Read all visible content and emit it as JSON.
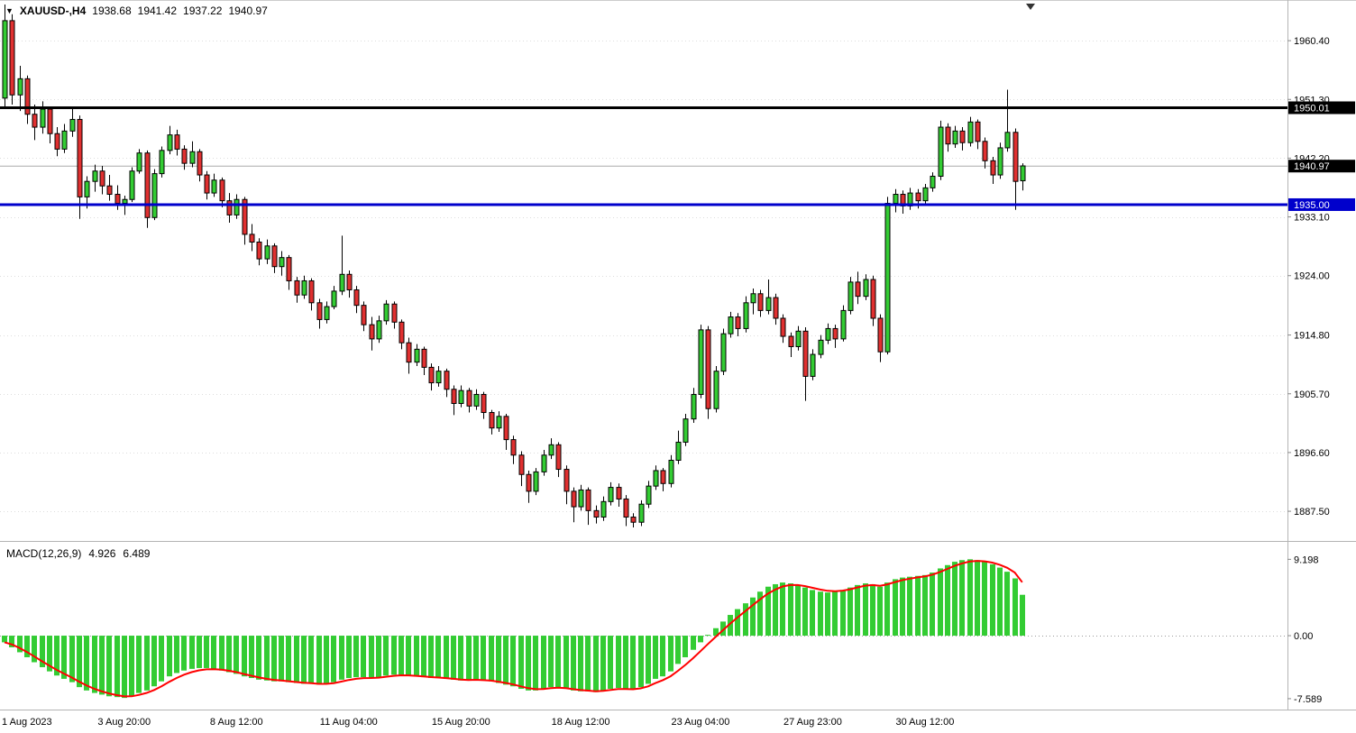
{
  "header": {
    "symbol_period": "XAUUSD-,H4",
    "open": "1938.68",
    "high": "1941.42",
    "low": "1937.22",
    "close": "1940.97"
  },
  "icons": {
    "symbol_dropdown": "▼",
    "chart_shift_marker": "▼"
  },
  "macd_panel": {
    "label": "MACD(12,26,9)",
    "main_value": "4.926",
    "signal_value": "6.489"
  },
  "colors": {
    "background": "#ffffff",
    "up_candle": "#33cc33",
    "down_candle": "#e03030",
    "outline": "#000000",
    "grid": "#dddddd",
    "axis_line": "#b4b4b4",
    "axis_text": "#000000",
    "macd_histogram": "#33cc33",
    "macd_signal": "#ff0000",
    "level_black": "#000000",
    "level_blue": "#0000cc",
    "bid_line": "#aaaaaa",
    "label_text": "#ffffff"
  },
  "chart_data": [
    {
      "type": "candlestick",
      "title": "XAUUSD-,H4",
      "y_axis": {
        "range": [
          1882.9,
          1966.7
        ],
        "ticks": [
          "1960.40",
          "1951.30",
          "1942.20",
          "1933.10",
          "1924.00",
          "1914.80",
          "1905.70",
          "1896.60",
          "1887.50"
        ]
      },
      "x_axis": {
        "ticks": [
          {
            "label": "1 Aug 2023",
            "i": 0
          },
          {
            "label": "3 Aug 20:00",
            "i": 16
          },
          {
            "label": "8 Aug 12:00",
            "i": 31
          },
          {
            "label": "11 Aug 04:00",
            "i": 46
          },
          {
            "label": "15 Aug 20:00",
            "i": 61
          },
          {
            "label": "18 Aug 12:00",
            "i": 77
          },
          {
            "label": "23 Aug 04:00",
            "i": 93
          },
          {
            "label": "27 Aug 23:00",
            "i": 108
          },
          {
            "label": "30 Aug 12:00",
            "i": 123
          }
        ]
      },
      "levels": [
        {
          "value": 1950.01,
          "label": "1950.01",
          "color": "#000000",
          "label_bg": "#000000",
          "width": 3
        },
        {
          "value": 1940.97,
          "label": "1940.97",
          "color": "#aaaaaa",
          "label_bg": "#000000",
          "width": 1
        },
        {
          "value": 1935.0,
          "label": "1935.00",
          "color": "#0000cc",
          "label_bg": "#0000cc",
          "width": 3
        }
      ],
      "candles": [
        [
          1951.5,
          1966.0,
          1950.0,
          1963.5
        ],
        [
          1963.5,
          1964.5,
          1950.5,
          1952.0
        ],
        [
          1952.0,
          1956.5,
          1949.5,
          1954.5
        ],
        [
          1954.5,
          1955.0,
          1947.5,
          1949.0
        ],
        [
          1949.0,
          1950.5,
          1945.0,
          1947.0
        ],
        [
          1947.0,
          1951.0,
          1946.0,
          1949.8
        ],
        [
          1949.8,
          1950.2,
          1944.5,
          1946.0
        ],
        [
          1946.0,
          1947.0,
          1942.5,
          1943.6
        ],
        [
          1943.6,
          1947.5,
          1943.0,
          1946.4
        ],
        [
          1946.4,
          1949.9,
          1945.5,
          1948.2
        ],
        [
          1948.2,
          1948.8,
          1932.8,
          1936.2
        ],
        [
          1936.2,
          1939.4,
          1934.4,
          1938.6
        ],
        [
          1938.6,
          1941.2,
          1937.0,
          1940.2
        ],
        [
          1940.2,
          1941.0,
          1936.6,
          1937.9
        ],
        [
          1937.9,
          1939.6,
          1935.6,
          1936.6
        ],
        [
          1936.6,
          1938.0,
          1934.2,
          1935.2
        ],
        [
          1935.2,
          1936.4,
          1933.4,
          1935.8
        ],
        [
          1935.8,
          1940.8,
          1935.4,
          1940.2
        ],
        [
          1940.2,
          1943.6,
          1939.8,
          1943.0
        ],
        [
          1943.0,
          1943.4,
          1931.4,
          1933.0
        ],
        [
          1933.0,
          1940.5,
          1932.6,
          1939.8
        ],
        [
          1939.8,
          1944.0,
          1939.2,
          1943.4
        ],
        [
          1943.4,
          1947.2,
          1942.8,
          1945.8
        ],
        [
          1945.8,
          1946.6,
          1942.6,
          1943.6
        ],
        [
          1943.6,
          1944.2,
          1940.4,
          1941.4
        ],
        [
          1941.4,
          1944.8,
          1940.8,
          1943.2
        ],
        [
          1943.2,
          1943.6,
          1938.6,
          1939.6
        ],
        [
          1939.6,
          1940.2,
          1935.8,
          1936.8
        ],
        [
          1936.8,
          1939.8,
          1936.2,
          1938.8
        ],
        [
          1938.8,
          1939.2,
          1934.6,
          1935.6
        ],
        [
          1935.6,
          1936.8,
          1932.2,
          1933.4
        ],
        [
          1933.4,
          1936.6,
          1932.8,
          1935.8
        ],
        [
          1935.8,
          1936.2,
          1928.8,
          1930.4
        ],
        [
          1930.4,
          1932.0,
          1927.8,
          1929.2
        ],
        [
          1929.2,
          1929.8,
          1925.6,
          1926.6
        ],
        [
          1926.6,
          1929.6,
          1925.8,
          1928.6
        ],
        [
          1928.6,
          1929.0,
          1924.4,
          1925.4
        ],
        [
          1925.4,
          1927.8,
          1924.0,
          1926.8
        ],
        [
          1926.8,
          1927.2,
          1921.8,
          1923.2
        ],
        [
          1923.2,
          1923.8,
          1919.8,
          1921.0
        ],
        [
          1921.0,
          1924.0,
          1920.4,
          1923.2
        ],
        [
          1923.2,
          1923.6,
          1918.6,
          1919.8
        ],
        [
          1919.8,
          1920.4,
          1915.8,
          1917.2
        ],
        [
          1917.2,
          1920.0,
          1916.6,
          1919.2
        ],
        [
          1919.2,
          1922.4,
          1918.8,
          1921.6
        ],
        [
          1921.6,
          1930.2,
          1921.0,
          1924.2
        ],
        [
          1924.2,
          1924.8,
          1920.6,
          1921.8
        ],
        [
          1921.8,
          1922.4,
          1918.2,
          1919.4
        ],
        [
          1919.4,
          1920.0,
          1915.4,
          1916.4
        ],
        [
          1916.4,
          1917.6,
          1912.4,
          1914.2
        ],
        [
          1914.2,
          1917.8,
          1913.6,
          1917.0
        ],
        [
          1917.0,
          1920.2,
          1916.4,
          1919.6
        ],
        [
          1919.6,
          1920.0,
          1915.8,
          1916.8
        ],
        [
          1916.8,
          1917.2,
          1912.6,
          1913.6
        ],
        [
          1913.6,
          1914.4,
          1908.8,
          1910.6
        ],
        [
          1910.6,
          1913.4,
          1910.0,
          1912.6
        ],
        [
          1912.6,
          1913.0,
          1908.6,
          1909.8
        ],
        [
          1909.8,
          1910.4,
          1906.2,
          1907.4
        ],
        [
          1907.4,
          1910.0,
          1906.8,
          1909.2
        ],
        [
          1909.2,
          1909.6,
          1905.2,
          1906.4
        ],
        [
          1906.4,
          1907.0,
          1902.4,
          1904.2
        ],
        [
          1904.2,
          1907.0,
          1903.6,
          1906.2
        ],
        [
          1906.2,
          1906.6,
          1902.8,
          1903.8
        ],
        [
          1903.8,
          1906.4,
          1903.2,
          1905.6
        ],
        [
          1905.6,
          1906.0,
          1901.8,
          1902.8
        ],
        [
          1902.8,
          1903.2,
          1899.4,
          1900.4
        ],
        [
          1900.4,
          1903.0,
          1899.8,
          1902.2
        ],
        [
          1902.2,
          1902.6,
          1897.0,
          1898.6
        ],
        [
          1898.6,
          1899.2,
          1894.8,
          1896.2
        ],
        [
          1896.2,
          1896.8,
          1891.4,
          1893.2
        ],
        [
          1893.2,
          1893.8,
          1888.8,
          1890.6
        ],
        [
          1890.6,
          1894.2,
          1890.0,
          1893.6
        ],
        [
          1893.6,
          1897.0,
          1893.0,
          1896.2
        ],
        [
          1896.2,
          1898.8,
          1895.6,
          1897.8
        ],
        [
          1897.8,
          1898.2,
          1892.8,
          1894.0
        ],
        [
          1894.0,
          1894.6,
          1888.6,
          1890.6
        ],
        [
          1890.6,
          1891.2,
          1885.8,
          1888.2
        ],
        [
          1888.2,
          1891.6,
          1887.6,
          1890.8
        ],
        [
          1890.8,
          1891.2,
          1885.4,
          1887.6
        ],
        [
          1887.6,
          1888.4,
          1885.6,
          1886.6
        ],
        [
          1886.6,
          1889.8,
          1886.0,
          1889.0
        ],
        [
          1889.0,
          1892.0,
          1888.4,
          1891.2
        ],
        [
          1891.2,
          1891.8,
          1888.2,
          1889.4
        ],
        [
          1889.4,
          1890.0,
          1885.2,
          1886.6
        ],
        [
          1886.6,
          1887.2,
          1885.0,
          1885.8
        ],
        [
          1885.8,
          1889.2,
          1885.2,
          1888.6
        ],
        [
          1888.6,
          1892.2,
          1888.0,
          1891.4
        ],
        [
          1891.4,
          1894.6,
          1890.8,
          1893.8
        ],
        [
          1893.8,
          1894.2,
          1890.6,
          1891.8
        ],
        [
          1891.8,
          1896.2,
          1891.2,
          1895.4
        ],
        [
          1895.4,
          1900.0,
          1894.8,
          1898.2
        ],
        [
          1898.2,
          1902.6,
          1897.6,
          1901.8
        ],
        [
          1901.8,
          1906.6,
          1901.2,
          1905.6
        ],
        [
          1905.6,
          1916.4,
          1905.0,
          1915.6
        ],
        [
          1915.6,
          1916.2,
          1901.8,
          1903.4
        ],
        [
          1903.4,
          1910.0,
          1902.8,
          1909.2
        ],
        [
          1909.2,
          1915.8,
          1908.6,
          1915.0
        ],
        [
          1915.0,
          1918.4,
          1914.4,
          1917.6
        ],
        [
          1917.6,
          1918.2,
          1914.6,
          1915.8
        ],
        [
          1915.8,
          1920.8,
          1915.2,
          1919.8
        ],
        [
          1919.8,
          1922.0,
          1918.0,
          1921.2
        ],
        [
          1921.2,
          1921.8,
          1917.6,
          1918.6
        ],
        [
          1918.6,
          1923.4,
          1918.0,
          1920.6
        ],
        [
          1920.6,
          1921.2,
          1916.4,
          1917.4
        ],
        [
          1917.4,
          1918.0,
          1913.6,
          1914.6
        ],
        [
          1914.6,
          1915.2,
          1911.4,
          1913.0
        ],
        [
          1913.0,
          1916.2,
          1912.4,
          1915.4
        ],
        [
          1915.4,
          1916.0,
          1904.6,
          1908.4
        ],
        [
          1908.4,
          1912.6,
          1907.8,
          1911.8
        ],
        [
          1911.8,
          1914.8,
          1911.2,
          1914.0
        ],
        [
          1914.0,
          1916.6,
          1913.4,
          1915.8
        ],
        [
          1915.8,
          1916.4,
          1912.8,
          1914.2
        ],
        [
          1914.2,
          1919.4,
          1913.8,
          1918.6
        ],
        [
          1918.6,
          1923.8,
          1918.0,
          1923.0
        ],
        [
          1923.0,
          1924.6,
          1919.6,
          1920.8
        ],
        [
          1920.8,
          1924.2,
          1920.2,
          1923.4
        ],
        [
          1923.4,
          1924.0,
          1916.2,
          1917.4
        ],
        [
          1917.4,
          1918.0,
          1910.6,
          1912.2
        ],
        [
          1912.2,
          1936.2,
          1911.8,
          1935.2
        ],
        [
          1935.2,
          1937.4,
          1933.8,
          1936.6
        ],
        [
          1936.6,
          1937.2,
          1933.6,
          1934.8
        ],
        [
          1934.8,
          1937.6,
          1934.2,
          1936.8
        ],
        [
          1936.8,
          1937.4,
          1934.4,
          1935.6
        ],
        [
          1935.6,
          1938.2,
          1935.0,
          1937.6
        ],
        [
          1937.6,
          1940.0,
          1937.0,
          1939.4
        ],
        [
          1939.4,
          1948.0,
          1938.8,
          1947.0
        ],
        [
          1947.0,
          1947.6,
          1943.2,
          1944.4
        ],
        [
          1944.4,
          1947.2,
          1943.8,
          1946.4
        ],
        [
          1946.4,
          1947.0,
          1943.4,
          1944.6
        ],
        [
          1944.6,
          1948.6,
          1944.0,
          1947.8
        ],
        [
          1947.8,
          1948.2,
          1943.6,
          1944.8
        ],
        [
          1944.8,
          1945.4,
          1940.6,
          1941.8
        ],
        [
          1941.8,
          1942.4,
          1938.2,
          1939.6
        ],
        [
          1939.6,
          1944.6,
          1939.0,
          1943.8
        ],
        [
          1943.8,
          1952.8,
          1943.2,
          1946.2
        ],
        [
          1946.2,
          1946.8,
          1934.2,
          1938.6
        ],
        [
          1938.7,
          1941.4,
          1937.2,
          1941.0
        ]
      ]
    },
    {
      "type": "macd",
      "params": "12,26,9",
      "main_value": 4.926,
      "signal_value": 6.489,
      "y_axis": {
        "range": [
          -8.9,
          11.3
        ],
        "ticks": [
          "9.198",
          "0.00",
          "-7.589"
        ]
      },
      "signal_period": 9,
      "histogram": [
        -0.8,
        -1.4,
        -2.0,
        -2.6,
        -3.2,
        -3.8,
        -4.3,
        -4.8,
        -5.2,
        -5.6,
        -6.2,
        -6.6,
        -6.9,
        -7.1,
        -7.3,
        -7.4,
        -7.5,
        -7.3,
        -6.9,
        -6.6,
        -6.1,
        -5.5,
        -4.9,
        -4.5,
        -4.2,
        -4.0,
        -3.9,
        -3.9,
        -4.0,
        -4.2,
        -4.4,
        -4.6,
        -4.9,
        -5.1,
        -5.3,
        -5.4,
        -5.5,
        -5.5,
        -5.6,
        -5.7,
        -5.8,
        -5.8,
        -5.9,
        -5.8,
        -5.6,
        -5.3,
        -5.1,
        -5.0,
        -5.0,
        -5.1,
        -5.0,
        -4.8,
        -4.7,
        -4.7,
        -4.8,
        -4.9,
        -5.0,
        -5.1,
        -5.1,
        -5.2,
        -5.3,
        -5.4,
        -5.4,
        -5.3,
        -5.4,
        -5.5,
        -5.7,
        -5.9,
        -6.1,
        -6.4,
        -6.6,
        -6.6,
        -6.4,
        -6.2,
        -6.2,
        -6.4,
        -6.6,
        -6.7,
        -6.7,
        -6.8,
        -6.6,
        -6.4,
        -6.3,
        -6.4,
        -6.5,
        -6.2,
        -5.8,
        -5.2,
        -4.9,
        -4.3,
        -3.4,
        -2.6,
        -1.7,
        -0.8,
        0.1,
        0.9,
        1.7,
        2.5,
        3.2,
        3.9,
        4.6,
        5.3,
        5.9,
        6.2,
        6.4,
        6.3,
        6.1,
        5.8,
        5.5,
        5.3,
        5.2,
        5.3,
        5.5,
        5.8,
        6.1,
        6.3,
        6.2,
        5.9,
        6.4,
        6.8,
        7.0,
        7.1,
        7.2,
        7.3,
        7.6,
        8.1,
        8.5,
        8.9,
        9.1,
        9.2,
        9.1,
        8.9,
        8.6,
        8.2,
        7.7,
        6.9,
        4.926
      ]
    }
  ]
}
